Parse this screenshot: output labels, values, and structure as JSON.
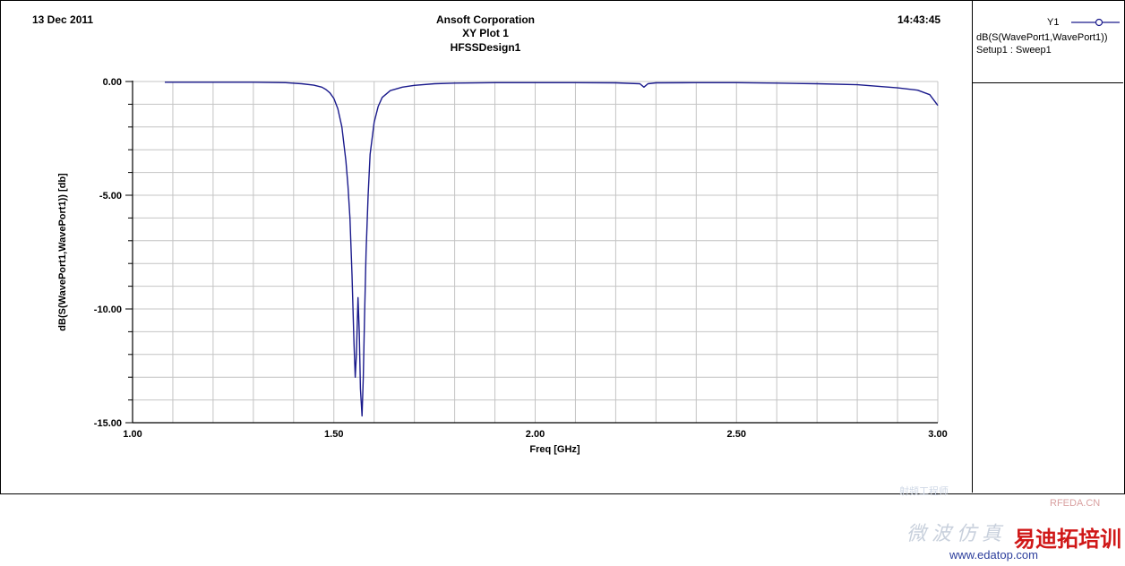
{
  "header": {
    "date": "13 Dec 2011",
    "company": "Ansoft Corporation",
    "plot_name": "XY Plot 1",
    "design_name": "HFSSDesign1",
    "time": "14:43:45"
  },
  "legend": {
    "axis": "Y1",
    "trace": "dB(S(WavePort1,WavePort1))",
    "setup": "Setup1 : Sweep1",
    "color": "#1a1a8c"
  },
  "watermark": {
    "line1": "射频工程师",
    "brand": "RFEDA.CN",
    "cn_left": "微波仿真",
    "cn_right": "易迪拓培训",
    "url": "www.edatop.com"
  },
  "chart_data": {
    "type": "line",
    "title": "XY Plot 1",
    "xlabel": "Freq [GHz]",
    "ylabel": "dB(S(WavePort1,WavePort1)) [db]",
    "xlim": [
      1.0,
      3.0
    ],
    "ylim": [
      -15.0,
      0.0
    ],
    "xticks": [
      "1.00",
      "1.50",
      "2.00",
      "2.50",
      "3.00"
    ],
    "yticks": [
      "0.00",
      "-5.00",
      "-10.00",
      "-15.00"
    ],
    "grid": true,
    "series": [
      {
        "name": "dB(S(WavePort1,WavePort1))",
        "color": "#1a1a8c",
        "x": [
          1.08,
          1.2,
          1.3,
          1.38,
          1.42,
          1.45,
          1.47,
          1.48,
          1.49,
          1.5,
          1.51,
          1.52,
          1.53,
          1.535,
          1.54,
          1.545,
          1.55,
          1.553,
          1.556,
          1.56,
          1.563,
          1.566,
          1.57,
          1.573,
          1.576,
          1.58,
          1.585,
          1.59,
          1.6,
          1.61,
          1.62,
          1.64,
          1.67,
          1.7,
          1.75,
          1.8,
          1.9,
          2.0,
          2.1,
          2.2,
          2.26,
          2.27,
          2.28,
          2.3,
          2.4,
          2.5,
          2.6,
          2.7,
          2.8,
          2.9,
          2.95,
          2.98,
          3.0
        ],
        "y": [
          -0.03,
          -0.03,
          -0.03,
          -0.05,
          -0.1,
          -0.16,
          -0.25,
          -0.35,
          -0.5,
          -0.75,
          -1.2,
          -2.0,
          -3.5,
          -4.6,
          -6.0,
          -8.5,
          -11.5,
          -13.0,
          -12.0,
          -9.5,
          -11.0,
          -13.5,
          -14.7,
          -13.0,
          -10.5,
          -7.5,
          -5.0,
          -3.2,
          -1.8,
          -1.1,
          -0.7,
          -0.4,
          -0.25,
          -0.17,
          -0.1,
          -0.07,
          -0.05,
          -0.05,
          -0.05,
          -0.06,
          -0.1,
          -0.25,
          -0.1,
          -0.06,
          -0.05,
          -0.05,
          -0.07,
          -0.1,
          -0.14,
          -0.28,
          -0.38,
          -0.58,
          -1.05
        ]
      }
    ]
  }
}
